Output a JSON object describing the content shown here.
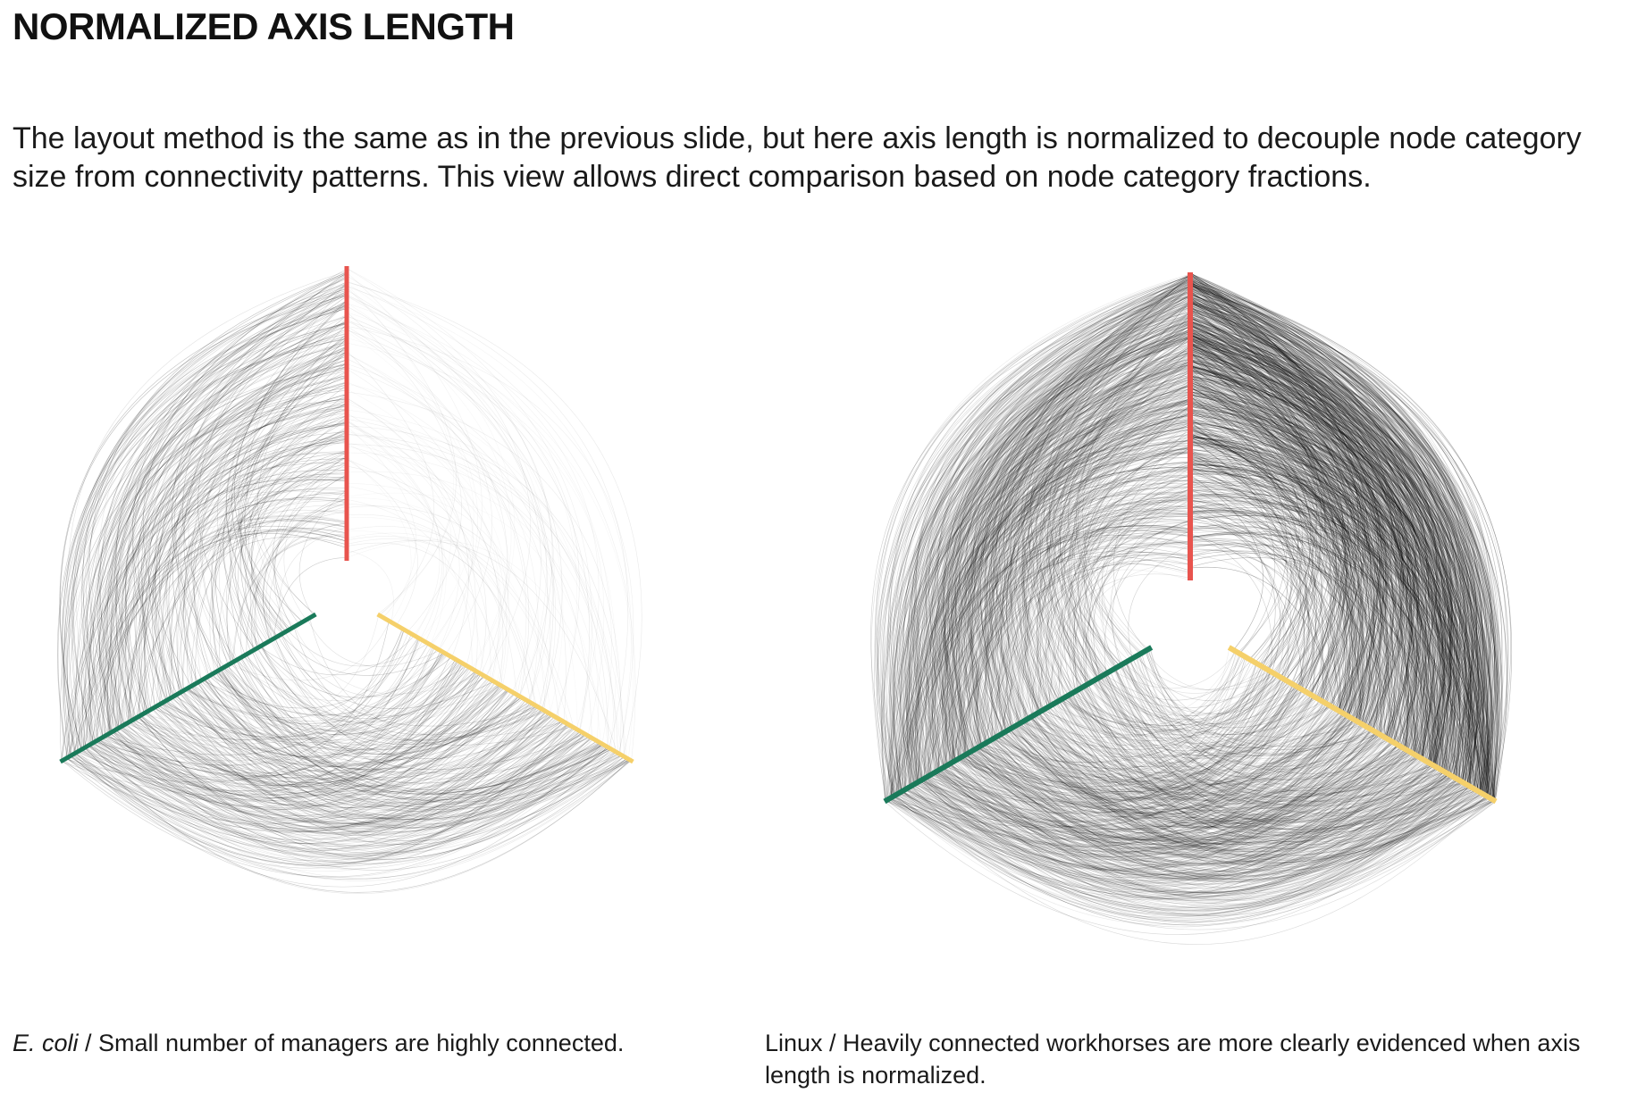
{
  "title": "NORMALIZED AXIS LENGTH",
  "intro": "The layout method is the same as in the previous slide, but here axis length is normalized to decouple node category size from connectivity patterns. This view allows direct comparison based on node category fractions.",
  "colors": {
    "axis_top": "#e8544e",
    "axis_right": "#f5d06a",
    "axis_left": "#1a7a5a",
    "edges": "#000000"
  },
  "panels": [
    {
      "caption_species": "E. coli",
      "caption_text": " / Small number of managers are highly connected.",
      "density": "sparse"
    },
    {
      "caption_species": "",
      "caption_text": "Linux / Heavily connected workhorses are more clearly evidenced when axis length is normalized.",
      "density": "dense"
    }
  ]
}
